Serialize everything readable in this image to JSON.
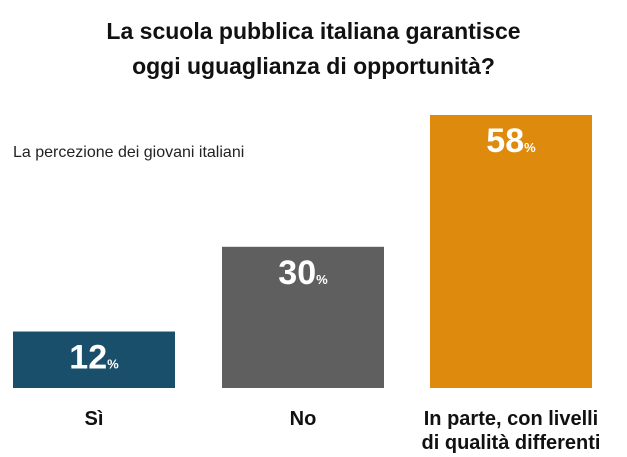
{
  "chart_data": {
    "type": "bar",
    "title_lines": [
      "La scuola pubblica italiana garantisce",
      "oggi uguaglianza di opportunità?"
    ],
    "subtitle": "La percezione dei giovani italiani",
    "categories": [
      "Sì",
      "No",
      "In parte, con livelli di qualità differenti"
    ],
    "category_lines": [
      [
        "Sì"
      ],
      [
        "No"
      ],
      [
        "In parte, con livelli",
        "di qualità differenti"
      ]
    ],
    "values": [
      12,
      30,
      58
    ],
    "value_suffix": "%",
    "colors": [
      "#1a4f6b",
      "#5f5f5f",
      "#de8a0c"
    ],
    "ylim": [
      0,
      58
    ],
    "grid": false,
    "legend": "none"
  }
}
